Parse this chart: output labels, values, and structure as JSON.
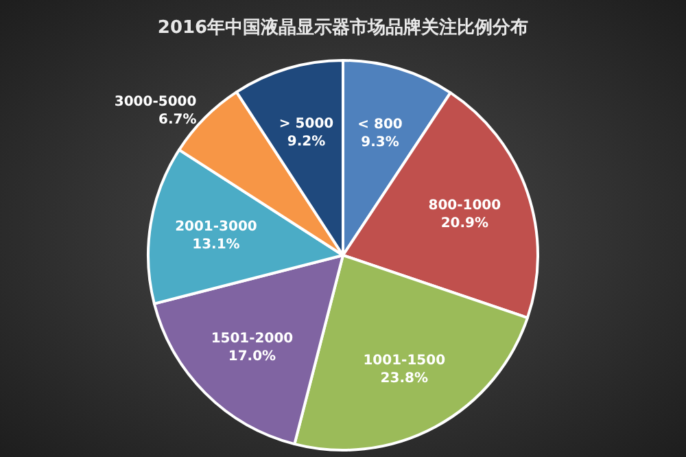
{
  "chart_data": {
    "type": "pie",
    "title": "2016年中国液晶显示器市场品牌关注比例分布",
    "categories": [
      "< 800",
      "800-1000",
      "1001-1500",
      "1501-2000",
      "2001-3000",
      "3000-5000",
      "> 5000"
    ],
    "values": [
      9.3,
      20.9,
      23.8,
      17.0,
      13.1,
      6.7,
      9.2
    ],
    "colors": [
      "#4f81bd",
      "#c0504d",
      "#9bbb59",
      "#8064a2",
      "#4bacc6",
      "#f79646",
      "#1f497d"
    ],
    "value_labels": [
      "9.3%",
      "20.9%",
      "23.8%",
      "17.0%",
      "13.1%",
      "6.7%",
      "9.2%"
    ]
  }
}
